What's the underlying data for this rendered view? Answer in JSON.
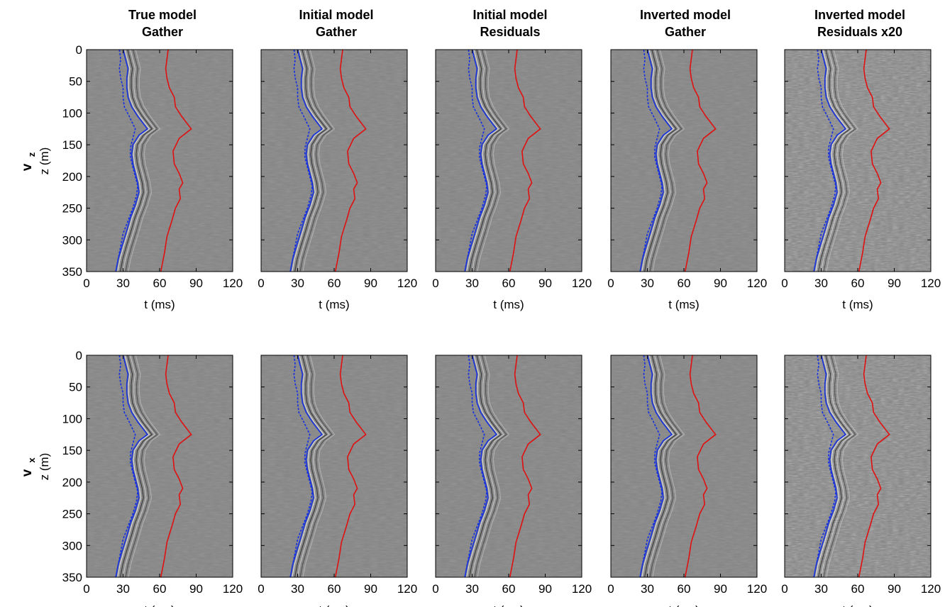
{
  "figure": {
    "columns": [
      {
        "title_line1": "True model",
        "title_line2": "Gather"
      },
      {
        "title_line1": "Initial model",
        "title_line2": "Gather"
      },
      {
        "title_line1": "Initial model",
        "title_line2": "Residuals"
      },
      {
        "title_line1": "Inverted model",
        "title_line2": "Gather"
      },
      {
        "title_line1": "Inverted model",
        "title_line2": "Residuals x20"
      }
    ],
    "rows": [
      {
        "component": "v",
        "component_sub": "z",
        "ylabel": "z (m)"
      },
      {
        "component": "v",
        "component_sub": "x",
        "ylabel": "z (m)"
      }
    ],
    "xlabel": "t (ms)",
    "xticks": [
      "0",
      "30",
      "60",
      "90",
      "120"
    ],
    "yticks": [
      "0",
      "50",
      "100",
      "150",
      "200",
      "250",
      "300",
      "350"
    ]
  },
  "chart_data": {
    "type": "line",
    "panels": "5 columns x 2 rows of seismic gathers with picked traveltime curves",
    "x_axis": {
      "label": "t (ms)",
      "range": [
        0,
        120
      ],
      "ticks": [
        0,
        30,
        60,
        90,
        120
      ]
    },
    "y_axis": {
      "label": "z (m)",
      "range": [
        0,
        350
      ],
      "inverted": true,
      "ticks": [
        0,
        50,
        100,
        150,
        200,
        250,
        300,
        350
      ]
    },
    "background": "#858585",
    "series": [
      {
        "color": "#1530e0",
        "style": "solid",
        "points": [
          [
            30,
            0
          ],
          [
            32,
            15
          ],
          [
            34,
            30
          ],
          [
            33,
            45
          ],
          [
            33,
            60
          ],
          [
            34,
            75
          ],
          [
            37,
            90
          ],
          [
            42,
            105
          ],
          [
            50,
            125
          ],
          [
            43,
            135
          ],
          [
            38,
            150
          ],
          [
            37,
            165
          ],
          [
            38,
            180
          ],
          [
            40,
            195
          ],
          [
            42,
            210
          ],
          [
            43,
            225
          ],
          [
            40,
            245
          ],
          [
            36,
            265
          ],
          [
            33,
            285
          ],
          [
            29,
            310
          ],
          [
            26,
            330
          ],
          [
            24,
            350
          ]
        ]
      },
      {
        "color": "#1530e0",
        "style": "dashed",
        "points": [
          [
            27,
            0
          ],
          [
            28,
            15
          ],
          [
            27,
            30
          ],
          [
            28,
            45
          ],
          [
            30,
            60
          ],
          [
            30,
            75
          ],
          [
            31,
            90
          ],
          [
            35,
            105
          ],
          [
            40,
            125
          ],
          [
            38,
            140
          ],
          [
            36,
            155
          ],
          [
            36,
            170
          ],
          [
            38,
            185
          ],
          [
            40,
            200
          ],
          [
            42,
            215
          ],
          [
            41,
            230
          ],
          [
            38,
            250
          ],
          [
            34,
            270
          ],
          [
            30,
            290
          ],
          [
            28,
            310
          ],
          [
            26,
            330
          ],
          [
            24,
            350
          ]
        ]
      },
      {
        "color": "#e01010",
        "style": "solid",
        "points": [
          [
            67,
            0
          ],
          [
            66,
            15
          ],
          [
            65,
            30
          ],
          [
            66,
            45
          ],
          [
            68,
            60
          ],
          [
            72,
            75
          ],
          [
            73,
            90
          ],
          [
            78,
            105
          ],
          [
            86,
            125
          ],
          [
            76,
            140
          ],
          [
            71,
            160
          ],
          [
            72,
            180
          ],
          [
            76,
            195
          ],
          [
            79,
            210
          ],
          [
            76,
            220
          ],
          [
            77,
            235
          ],
          [
            73,
            250
          ],
          [
            70,
            270
          ],
          [
            66,
            295
          ],
          [
            64,
            320
          ],
          [
            62,
            340
          ],
          [
            61,
            350
          ]
        ]
      }
    ]
  },
  "style": {
    "blue": "#1530e0",
    "red": "#e01010",
    "panel_gray": "#858585"
  }
}
